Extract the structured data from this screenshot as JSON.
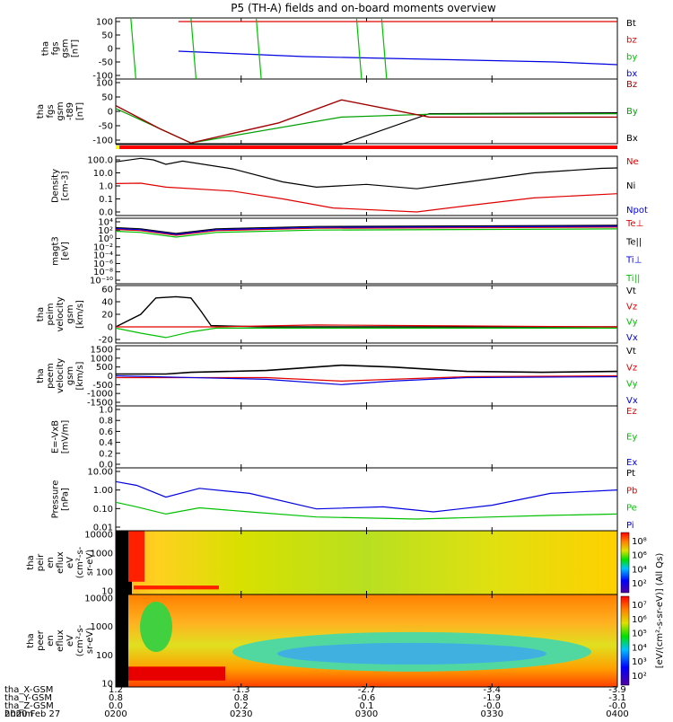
{
  "chart_data": {
    "type": "stacked time-series overview",
    "title": "P5 (TH-A) fields and on-board moments overview",
    "time_ticks": [
      "0200",
      "0230",
      "0300",
      "0330",
      "0400"
    ],
    "date": "2020 Feb 27",
    "ephemeris": {
      "labels": [
        "tha_X-GSM",
        "tha_Y-GSM",
        "tha_Z-GSM",
        "hhmm"
      ],
      "rows": [
        [
          "1.2",
          "-1.3",
          "-2.7",
          "-3.4",
          "-3.9"
        ],
        [
          "0.8",
          "0.8",
          "-0.6",
          "-1.9",
          "-3.1"
        ],
        [
          "0.0",
          "0.2",
          "0.1",
          "-0.0",
          "-0.0"
        ]
      ]
    },
    "panels": [
      {
        "id": "fgs_gsm",
        "ylabel": [
          "tha",
          "fgs",
          "gsm",
          "[nT]"
        ],
        "yticks": [
          "100",
          "50",
          "0",
          "-50",
          "-100"
        ],
        "legend": [
          {
            "text": "Bt",
            "color": "#000000"
          },
          {
            "text": "bz",
            "color": "#e00000"
          },
          {
            "text": "by",
            "color": "#00c000"
          },
          {
            "text": "bx",
            "color": "#0000e0"
          }
        ]
      },
      {
        "id": "fgs_gse",
        "ylabel": [
          "tha",
          "fgs",
          "gsm",
          "-t89",
          "[nT]"
        ],
        "yticks": [
          "100",
          "50",
          "0",
          "-50",
          "-100"
        ],
        "legend": [
          {
            "text": "Bz",
            "color": "#a00000"
          },
          {
            "text": "By",
            "color": "#00a000"
          },
          {
            "text": "Bx",
            "color": "#000000"
          }
        ]
      },
      {
        "id": "density",
        "ylabel": [
          "Density",
          "[cm-3]"
        ],
        "yticks": [
          "100.0",
          "10.0",
          "1.0",
          "0.1",
          "0.0"
        ],
        "legend": [
          {
            "text": "Ne",
            "color": "#e00000"
          },
          {
            "text": "Ni",
            "color": "#000000"
          },
          {
            "text": "Npot",
            "color": "#0000e0"
          }
        ]
      },
      {
        "id": "temperature",
        "ylabel": [
          "magt3",
          "[eV]"
        ],
        "yticks": [
          "10⁴",
          "10²",
          "10⁰",
          "10⁻²",
          "10⁻⁴",
          "10⁻⁶",
          "10⁻⁸",
          "10⁻¹⁰"
        ],
        "legend": [
          {
            "text": "Te⊥",
            "color": "#e00000"
          },
          {
            "text": "Te||",
            "color": "#000000"
          },
          {
            "text": "Ti⊥",
            "color": "#0000e0"
          },
          {
            "text": "Ti||",
            "color": "#00c000"
          }
        ]
      },
      {
        "id": "peim_velocity",
        "ylabel": [
          "tha",
          "peim",
          "velocity",
          "gsm",
          "[km/s]"
        ],
        "yticks": [
          "60",
          "40",
          "20",
          "0",
          "-20"
        ],
        "legend": [
          {
            "text": "Vt",
            "color": "#000000"
          },
          {
            "text": "Vz",
            "color": "#e00000"
          },
          {
            "text": "Vy",
            "color": "#00c000"
          },
          {
            "text": "Vx",
            "color": "#0000e0"
          }
        ]
      },
      {
        "id": "peem_velocity",
        "ylabel": [
          "tha",
          "peem",
          "velocity",
          "gsm",
          "[km/s]"
        ],
        "yticks": [
          "1500",
          "1000",
          "500",
          "0",
          "-500",
          "-1000",
          "-1500"
        ],
        "legend": [
          {
            "text": "Vt",
            "color": "#000000"
          },
          {
            "text": "Vz",
            "color": "#e00000"
          },
          {
            "text": "Vy",
            "color": "#00c000"
          },
          {
            "text": "Vx",
            "color": "#0000e0"
          }
        ]
      },
      {
        "id": "efield",
        "ylabel": [
          "E=-VxB",
          "[mV/m]"
        ],
        "yticks": [
          "1.0",
          "0.8",
          "0.6",
          "0.4",
          "0.2",
          "0.0"
        ],
        "legend": [
          {
            "text": "Ez",
            "color": "#e00000"
          },
          {
            "text": "Ey",
            "color": "#00c000"
          },
          {
            "text": "Ex",
            "color": "#0000e0"
          }
        ]
      },
      {
        "id": "pressure",
        "ylabel": [
          "Pressure",
          "[nPa]"
        ],
        "yticks": [
          "10.00",
          "1.00",
          "0.10",
          "0.01"
        ],
        "legend": [
          {
            "text": "Pt",
            "color": "#000000"
          },
          {
            "text": "Pb",
            "color": "#e00000"
          },
          {
            "text": "Pe",
            "color": "#00c000"
          },
          {
            "text": "Pi",
            "color": "#0000e0"
          }
        ]
      },
      {
        "id": "peir_eflux",
        "ylabel": [
          "tha",
          "peir",
          "en",
          "eflux",
          "eV",
          "(cm²-s-",
          "sr-eV)"
        ],
        "yticks": [
          "10000",
          "1000",
          "100",
          "10"
        ],
        "cbar_ticks": [
          "10⁸",
          "10⁶",
          "10⁴",
          "10²"
        ]
      },
      {
        "id": "peer_eflux",
        "ylabel": [
          "tha",
          "peer",
          "en",
          "eflux",
          "eV",
          "(cm²-s-",
          "sr-eV)"
        ],
        "yticks": [
          "10000",
          "1000",
          "100",
          "10"
        ],
        "cbar_ticks": [
          "10⁷",
          "10⁶",
          "10⁵",
          "10⁴",
          "10³",
          "10²"
        ]
      }
    ],
    "colorbar_label": "[eV/(cm²-s-sr-eV)] (All Qs)",
    "series": {
      "fgs_gsm": {
        "bx": [
          [
            0.5,
            -10
          ],
          [
            1.5,
            -30
          ],
          [
            2.5,
            -40
          ],
          [
            3.5,
            -50
          ],
          [
            4,
            -60
          ]
        ],
        "bz": [
          [
            0.5,
            110
          ],
          [
            1,
            104
          ],
          [
            2,
            104
          ],
          [
            3,
            104
          ],
          [
            4,
            103
          ]
        ]
      },
      "fgs_gse": {
        "Bz": [
          [
            0,
            20
          ],
          [
            0.35,
            -60
          ],
          [
            0.6,
            -110
          ],
          [
            1.3,
            -40
          ],
          [
            1.8,
            40
          ],
          [
            2.5,
            -20
          ],
          [
            4,
            -20
          ]
        ],
        "By": [
          [
            0,
            10
          ],
          [
            0.6,
            -110
          ],
          [
            1.8,
            -20
          ],
          [
            2.5,
            -10
          ],
          [
            4,
            -8
          ]
        ],
        "Bx": [
          [
            0,
            -115
          ],
          [
            1.8,
            -115
          ],
          [
            2.5,
            -8
          ],
          [
            4,
            -5
          ]
        ]
      },
      "density": {
        "Ni": [
          [
            0,
            70
          ],
          [
            0.3,
            130
          ],
          [
            0.45,
            100
          ],
          [
            0.6,
            45
          ],
          [
            0.8,
            80
          ],
          [
            1.4,
            20
          ],
          [
            2,
            2
          ],
          [
            2.4,
            0.8
          ],
          [
            3,
            1.3
          ],
          [
            3.6,
            0.6
          ],
          [
            4.2,
            2
          ],
          [
            5,
            10
          ],
          [
            5.8,
            22
          ],
          [
            6,
            24
          ]
        ],
        "Ne": [
          [
            0,
            1.5
          ],
          [
            0.3,
            1.6
          ],
          [
            0.6,
            0.8
          ],
          [
            1.4,
            0.4
          ],
          [
            2,
            0.1
          ],
          [
            2.6,
            0.02
          ],
          [
            3.6,
            0.01
          ],
          [
            4.2,
            0.03
          ],
          [
            5,
            0.12
          ],
          [
            6,
            0.25
          ]
        ]
      },
      "pressure": {
        "Pi": [
          [
            0,
            2.5
          ],
          [
            0.25,
            1.5
          ],
          [
            0.6,
            0.3
          ],
          [
            1,
            1.0
          ],
          [
            1.6,
            0.5
          ],
          [
            2.4,
            0.06
          ],
          [
            3.2,
            0.08
          ],
          [
            3.8,
            0.04
          ],
          [
            4.5,
            0.1
          ],
          [
            5.2,
            0.5
          ],
          [
            6,
            0.8
          ]
        ],
        "Pe": [
          [
            0,
            0.15
          ],
          [
            0.25,
            0.08
          ],
          [
            0.6,
            0.03
          ],
          [
            1,
            0.07
          ],
          [
            1.6,
            0.04
          ],
          [
            2.4,
            0.02
          ],
          [
            3.6,
            0.015
          ],
          [
            4.5,
            0.02
          ],
          [
            5.2,
            0.025
          ],
          [
            6,
            0.03
          ]
        ]
      }
    }
  }
}
